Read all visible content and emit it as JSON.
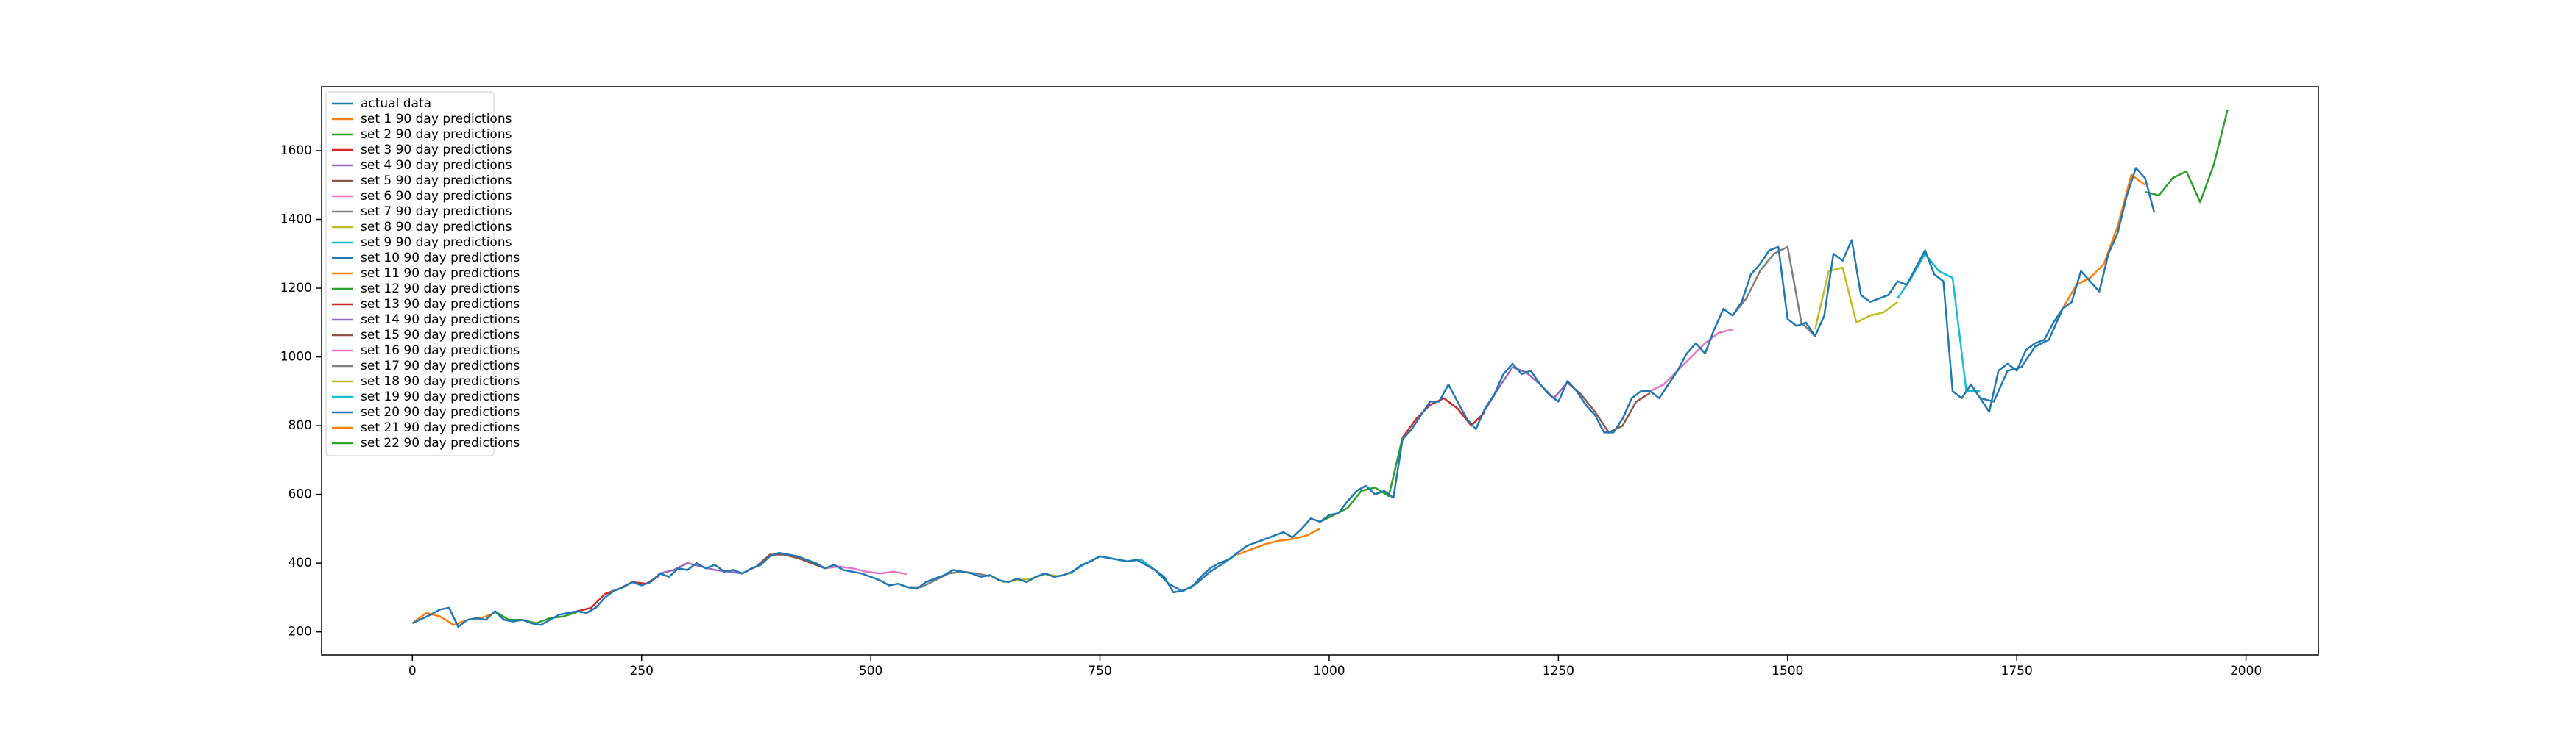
{
  "chart_data": {
    "type": "line",
    "xlim": [
      -99,
      2079
    ],
    "ylim": [
      133,
      1786
    ],
    "xticks": [
      0,
      250,
      500,
      750,
      1000,
      1250,
      1500,
      1750,
      2000
    ],
    "yticks": [
      200,
      400,
      600,
      800,
      1000,
      1200,
      1400,
      1600
    ],
    "grid": false,
    "legend": "upper left",
    "series": [
      {
        "name": "actual data",
        "color": "#1f77b4",
        "x": [
          0,
          20,
          30,
          40,
          50,
          60,
          70,
          80,
          90,
          100,
          110,
          120,
          130,
          140,
          150,
          160,
          170,
          180,
          190,
          200,
          210,
          220,
          230,
          240,
          250,
          260,
          270,
          280,
          290,
          300,
          310,
          320,
          330,
          340,
          350,
          360,
          370,
          380,
          390,
          400,
          410,
          420,
          430,
          440,
          450,
          460,
          470,
          480,
          490,
          500,
          510,
          520,
          530,
          540,
          550,
          560,
          570,
          580,
          590,
          600,
          610,
          620,
          630,
          640,
          650,
          660,
          670,
          680,
          690,
          700,
          710,
          720,
          730,
          740,
          750,
          760,
          770,
          780,
          790,
          800,
          810,
          820,
          830,
          840,
          850,
          860,
          870,
          880,
          890,
          900,
          910,
          920,
          930,
          940,
          950,
          960,
          970,
          980,
          990,
          1000,
          1010,
          1020,
          1030,
          1040,
          1050,
          1060,
          1070,
          1080,
          1090,
          1100,
          1110,
          1120,
          1130,
          1140,
          1150,
          1160,
          1170,
          1180,
          1190,
          1200,
          1210,
          1220,
          1230,
          1240,
          1250,
          1260,
          1270,
          1280,
          1290,
          1300,
          1310,
          1320,
          1330,
          1340,
          1350,
          1360,
          1370,
          1380,
          1390,
          1400,
          1410,
          1420,
          1430,
          1440,
          1450,
          1460,
          1470,
          1480,
          1490,
          1500,
          1510,
          1520,
          1530,
          1540,
          1550,
          1560,
          1570,
          1580,
          1590,
          1600,
          1610,
          1620,
          1630,
          1640,
          1650,
          1660,
          1670,
          1680,
          1690,
          1700,
          1710,
          1720,
          1730,
          1740,
          1750,
          1760,
          1770,
          1780,
          1790,
          1800,
          1810,
          1820,
          1830,
          1840,
          1850,
          1860,
          1870,
          1880,
          1890,
          1900
        ],
        "values": [
          225,
          250,
          265,
          270,
          215,
          235,
          240,
          235,
          260,
          235,
          230,
          235,
          225,
          220,
          235,
          250,
          255,
          260,
          255,
          270,
          300,
          320,
          330,
          345,
          335,
          345,
          370,
          360,
          385,
          380,
          400,
          385,
          395,
          375,
          380,
          370,
          385,
          395,
          420,
          430,
          425,
          420,
          410,
          400,
          385,
          395,
          380,
          375,
          370,
          360,
          350,
          335,
          340,
          330,
          325,
          345,
          355,
          365,
          380,
          375,
          370,
          360,
          365,
          350,
          345,
          355,
          345,
          360,
          370,
          360,
          365,
          375,
          395,
          405,
          420,
          415,
          410,
          405,
          410,
          395,
          380,
          360,
          315,
          320,
          330,
          360,
          385,
          400,
          410,
          430,
          450,
          460,
          470,
          480,
          490,
          475,
          500,
          530,
          520,
          540,
          545,
          580,
          610,
          625,
          600,
          610,
          590,
          760,
          790,
          830,
          870,
          870,
          920,
          870,
          820,
          790,
          850,
          890,
          950,
          980,
          950,
          960,
          920,
          890,
          870,
          930,
          900,
          860,
          830,
          780,
          780,
          820,
          880,
          900,
          900,
          880,
          920,
          960,
          1010,
          1040,
          1010,
          1080,
          1140,
          1120,
          1160,
          1240,
          1270,
          1310,
          1320,
          1110,
          1090,
          1100,
          1060,
          1120,
          1300,
          1280,
          1340,
          1180,
          1160,
          1170,
          1180,
          1220,
          1210,
          1260,
          1310,
          1240,
          1220,
          900,
          880,
          920,
          880,
          840,
          960,
          980,
          960,
          1020,
          1040,
          1050,
          1100,
          1140,
          1160,
          1250,
          1220,
          1190,
          1300,
          1360,
          1470,
          1550,
          1520,
          1420
        ]
      },
      {
        "name": "set 1 90 day predictions",
        "color": "#ff7f0e",
        "x": [
          0,
          15,
          30,
          45,
          60,
          75,
          90
        ],
        "values": [
          225,
          255,
          245,
          220,
          235,
          240,
          255
        ]
      },
      {
        "name": "set 2 90 day predictions",
        "color": "#2ca02c",
        "x": [
          90,
          105,
          120,
          135,
          150,
          165,
          180
        ],
        "values": [
          260,
          235,
          235,
          225,
          240,
          245,
          258
        ]
      },
      {
        "name": "set 3 90 day predictions",
        "color": "#d62728",
        "x": [
          180,
          195,
          210,
          225,
          240,
          255,
          270
        ],
        "values": [
          260,
          270,
          310,
          325,
          345,
          340,
          365
        ]
      },
      {
        "name": "set 4 90 day predictions",
        "color": "#9467bd",
        "x": [
          270,
          285,
          300,
          315,
          330,
          345,
          360
        ],
        "values": [
          370,
          380,
          400,
          390,
          380,
          375,
          370
        ]
      },
      {
        "name": "set 5 90 day predictions",
        "color": "#8c564b",
        "x": [
          360,
          375,
          390,
          405,
          420,
          435,
          450
        ],
        "values": [
          370,
          390,
          425,
          425,
          415,
          400,
          385
        ]
      },
      {
        "name": "set 6 90 day predictions",
        "color": "#e377c2",
        "x": [
          450,
          465,
          480,
          495,
          510,
          525,
          540
        ],
        "values": [
          385,
          390,
          385,
          375,
          370,
          375,
          368
        ]
      },
      {
        "name": "set 7 90 day predictions",
        "color": "#7f7f7f",
        "x": [
          540,
          555,
          570,
          585,
          600,
          615,
          630
        ],
        "values": [
          330,
          330,
          350,
          370,
          375,
          370,
          362
        ]
      },
      {
        "name": "set 8 90 day predictions",
        "color": "#bcbd22",
        "x": [
          630,
          645,
          660,
          675,
          690,
          705,
          720
        ],
        "values": [
          365,
          345,
          350,
          355,
          368,
          362,
          372
        ]
      },
      {
        "name": "set 9 90 day predictions",
        "color": "#17becf",
        "x": [
          720,
          735,
          750,
          765,
          780,
          795,
          810
        ],
        "values": [
          375,
          400,
          420,
          412,
          405,
          410,
          380
        ]
      },
      {
        "name": "set 10 90 day predictions",
        "color": "#1f77b4",
        "x": [
          810,
          825,
          840,
          855,
          870,
          885,
          900
        ],
        "values": [
          380,
          340,
          318,
          340,
          375,
          400,
          428
        ]
      },
      {
        "name": "set 11 90 day predictions",
        "color": "#ff7f0e",
        "x": [
          900,
          915,
          930,
          945,
          960,
          975,
          990
        ],
        "values": [
          425,
          440,
          455,
          465,
          470,
          480,
          500
        ]
      },
      {
        "name": "set 12 90 day predictions",
        "color": "#2ca02c",
        "x": [
          990,
          1005,
          1020,
          1035,
          1050,
          1065,
          1080
        ],
        "values": [
          520,
          540,
          560,
          610,
          620,
          595,
          765
        ]
      },
      {
        "name": "set 13 90 day predictions",
        "color": "#d62728",
        "x": [
          1080,
          1095,
          1110,
          1125,
          1140,
          1155,
          1170
        ],
        "values": [
          765,
          820,
          860,
          880,
          850,
          800,
          840
        ]
      },
      {
        "name": "set 14 90 day predictions",
        "color": "#9467bd",
        "x": [
          1170,
          1185,
          1200,
          1215,
          1230,
          1245,
          1260
        ],
        "values": [
          845,
          910,
          970,
          955,
          920,
          880,
          925
        ]
      },
      {
        "name": "set 15 90 day predictions",
        "color": "#8c564b",
        "x": [
          1260,
          1275,
          1290,
          1305,
          1320,
          1335,
          1350
        ],
        "values": [
          925,
          890,
          840,
          780,
          800,
          870,
          895
        ]
      },
      {
        "name": "set 16 90 day predictions",
        "color": "#e377c2",
        "x": [
          1350,
          1365,
          1380,
          1395,
          1410,
          1425,
          1440
        ],
        "values": [
          900,
          920,
          960,
          1000,
          1040,
          1070,
          1080
        ]
      },
      {
        "name": "set 17 90 day predictions",
        "color": "#7f7f7f",
        "x": [
          1440,
          1455,
          1470,
          1485,
          1500,
          1515,
          1530
        ],
        "values": [
          1120,
          1170,
          1250,
          1300,
          1320,
          1100,
          1060
        ]
      },
      {
        "name": "set 18 90 day predictions",
        "color": "#bcbd22",
        "x": [
          1530,
          1545,
          1560,
          1575,
          1590,
          1605,
          1620
        ],
        "values": [
          1080,
          1250,
          1260,
          1100,
          1120,
          1130,
          1160
        ]
      },
      {
        "name": "set 19 90 day predictions",
        "color": "#17becf",
        "x": [
          1620,
          1635,
          1650,
          1665,
          1680,
          1695,
          1710
        ],
        "values": [
          1170,
          1230,
          1300,
          1250,
          1230,
          900,
          900
        ]
      },
      {
        "name": "set 20 90 day predictions",
        "color": "#1f77b4",
        "x": [
          1710,
          1725,
          1740,
          1755,
          1770,
          1785,
          1800
        ],
        "values": [
          880,
          870,
          960,
          970,
          1030,
          1050,
          1140
        ]
      },
      {
        "name": "set 21 90 day predictions",
        "color": "#ff7f0e",
        "x": [
          1800,
          1815,
          1830,
          1845,
          1860,
          1875,
          1890
        ],
        "values": [
          1140,
          1210,
          1230,
          1270,
          1380,
          1530,
          1500
        ]
      },
      {
        "name": "set 22 90 day predictions",
        "color": "#2ca02c",
        "x": [
          1890,
          1905,
          1920,
          1935,
          1950,
          1965,
          1980
        ],
        "values": [
          1480,
          1470,
          1520,
          1540,
          1450,
          1560,
          1720
        ]
      }
    ]
  }
}
